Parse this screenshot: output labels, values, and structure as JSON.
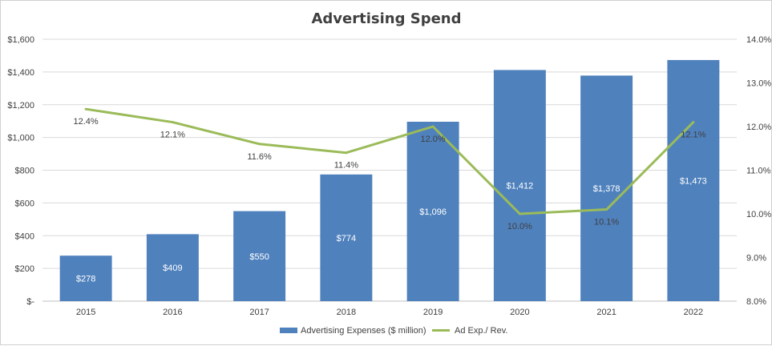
{
  "chart_data": {
    "type": "bar",
    "title": "Advertising Spend",
    "categories": [
      "2015",
      "2016",
      "2017",
      "2018",
      "2019",
      "2020",
      "2021",
      "2022"
    ],
    "series": [
      {
        "name": "Advertising Expenses ($ million)",
        "type": "bar",
        "axis": "left",
        "values": [
          278,
          409,
          550,
          774,
          1096,
          1412,
          1378,
          1473
        ],
        "labels": [
          "$278",
          "$409",
          "$550",
          "$774",
          "$1,096",
          "$1,412",
          "$1,378",
          "$1,473"
        ],
        "color": "#4f81bd"
      },
      {
        "name": "Ad Exp./ Rev.",
        "type": "line",
        "axis": "right",
        "values": [
          12.4,
          12.1,
          11.6,
          11.4,
          12.0,
          10.0,
          10.1,
          12.1
        ],
        "labels": [
          "12.4%",
          "12.1%",
          "11.6%",
          "11.4%",
          "12.0%",
          "10.0%",
          "10.1%",
          "12.1%"
        ],
        "color": "#9bbb59"
      }
    ],
    "y_left": {
      "ylim": [
        0,
        1600
      ],
      "ticks": [
        0,
        200,
        400,
        600,
        800,
        1000,
        1200,
        1400,
        1600
      ],
      "tick_labels": [
        "$-",
        "$200",
        "$400",
        "$600",
        "$800",
        "$1,000",
        "$1,200",
        "$1,400",
        "$1,600"
      ]
    },
    "y_right": {
      "ylim": [
        8.0,
        14.0
      ],
      "ticks": [
        8,
        9,
        10,
        11,
        12,
        13,
        14
      ],
      "tick_labels": [
        "8.0%",
        "9.0%",
        "10.0%",
        "11.0%",
        "12.0%",
        "13.0%",
        "14.0%"
      ]
    },
    "grid": true,
    "legend": "bottom",
    "gridline_color": "#d9d9d9"
  }
}
